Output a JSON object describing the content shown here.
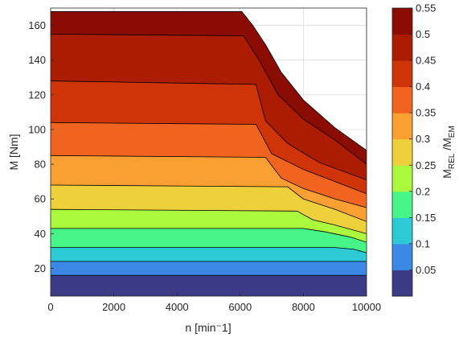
{
  "chart_data": {
    "type": "contour-filled",
    "xlabel": "n [min⁻1]",
    "ylabel": "M [Nm]",
    "colorbar_label": "M_REL/M_EM",
    "x_ticks": [
      "0",
      "2000",
      "4000",
      "6000",
      "8000",
      "10000"
    ],
    "y_ticks": [
      "20",
      "40",
      "60",
      "80",
      "100",
      "120",
      "140",
      "160"
    ],
    "colorbar_ticks": [
      "0.05",
      "0.1",
      "0.15",
      "0.2",
      "0.25",
      "0.3",
      "0.35",
      "0.4",
      "0.45",
      "0.5",
      "0.55"
    ],
    "xlim": [
      0,
      10000
    ],
    "ylim": [
      4,
      170
    ],
    "clim": [
      0,
      0.55
    ],
    "grid": true,
    "colormap": "turbo",
    "envelope": [
      [
        0,
        168
      ],
      [
        6050,
        168
      ],
      [
        6400,
        160
      ],
      [
        6800,
        149
      ],
      [
        7300,
        133
      ],
      [
        8000,
        117
      ],
      [
        9000,
        101
      ],
      [
        10000,
        88
      ]
    ],
    "contour_lines": [
      {
        "level": 0.05,
        "points": [
          [
            0,
            16
          ],
          [
            10000,
            16
          ]
        ]
      },
      {
        "level": 0.1,
        "points": [
          [
            0,
            24
          ],
          [
            10000,
            24
          ]
        ]
      },
      {
        "level": 0.15,
        "points": [
          [
            0,
            32
          ],
          [
            9000,
            32
          ],
          [
            9600,
            31
          ],
          [
            10000,
            29
          ]
        ]
      },
      {
        "level": 0.2,
        "points": [
          [
            0,
            43
          ],
          [
            8000,
            43
          ],
          [
            8700,
            41
          ],
          [
            9500,
            38
          ],
          [
            10000,
            35
          ]
        ]
      },
      {
        "level": 0.25,
        "points": [
          [
            0,
            54
          ],
          [
            7800,
            53
          ],
          [
            8300,
            48
          ],
          [
            9000,
            45
          ],
          [
            10000,
            40
          ]
        ]
      },
      {
        "level": 0.3,
        "points": [
          [
            0,
            68
          ],
          [
            7500,
            67
          ],
          [
            8000,
            60
          ],
          [
            9000,
            54
          ],
          [
            10000,
            47
          ]
        ]
      },
      {
        "level": 0.35,
        "points": [
          [
            0,
            85
          ],
          [
            6800,
            84
          ],
          [
            7300,
            72
          ],
          [
            8000,
            66
          ],
          [
            9000,
            60
          ],
          [
            10000,
            55
          ]
        ]
      },
      {
        "level": 0.4,
        "points": [
          [
            0,
            104
          ],
          [
            6500,
            103
          ],
          [
            7000,
            86
          ],
          [
            8000,
            77
          ],
          [
            9000,
            70
          ],
          [
            10000,
            63
          ]
        ]
      },
      {
        "level": 0.45,
        "points": [
          [
            0,
            128
          ],
          [
            6500,
            126
          ],
          [
            6800,
            105
          ],
          [
            7500,
            92
          ],
          [
            8500,
            81
          ],
          [
            10000,
            71
          ]
        ]
      },
      {
        "level": 0.5,
        "points": [
          [
            0,
            155
          ],
          [
            6100,
            154
          ],
          [
            6600,
            140
          ],
          [
            7200,
            120
          ],
          [
            8000,
            106
          ],
          [
            9000,
            94
          ],
          [
            10000,
            80
          ]
        ]
      }
    ]
  }
}
